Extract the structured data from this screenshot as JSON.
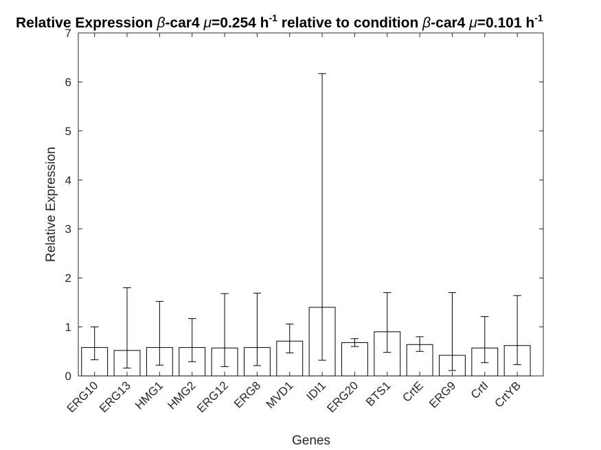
{
  "chart_data": {
    "type": "bar",
    "title": {
      "prefix": "Relative Expression ",
      "beta1": "β",
      "strain1": "-car4 ",
      "mu1": "μ",
      "rate1": "=0.254 h",
      "sup1": "-1",
      "middle": " relative to condition ",
      "beta2": "β",
      "strain2": "-car4 ",
      "mu2": "μ",
      "rate2": "=0.101 h",
      "sup2": "-1"
    },
    "xlabel": "Genes",
    "ylabel": "Relative Expression",
    "ylim": [
      0,
      7
    ],
    "yticks": [
      0,
      1,
      2,
      3,
      4,
      5,
      6,
      7
    ],
    "grid": false,
    "categories": [
      "ERG10",
      "ERG13",
      "HMG1",
      "HMG2",
      "ERG12",
      "ERG8",
      "MVD1",
      "IDI1",
      "ERG20",
      "BTS1",
      "CrtE",
      "ERG9",
      "CrtI",
      "CrtYB"
    ],
    "values": [
      0.58,
      0.52,
      0.58,
      0.58,
      0.57,
      0.58,
      0.71,
      1.4,
      0.68,
      0.9,
      0.64,
      0.42,
      0.57,
      0.62
    ],
    "error_lower": [
      0.33,
      0.16,
      0.22,
      0.29,
      0.19,
      0.21,
      0.47,
      0.32,
      0.6,
      0.48,
      0.5,
      0.11,
      0.27,
      0.23
    ],
    "error_upper": [
      1.0,
      1.8,
      1.52,
      1.17,
      1.68,
      1.69,
      1.06,
      6.17,
      0.76,
      1.7,
      0.8,
      1.7,
      1.21,
      1.64
    ],
    "colors": {
      "bar_fill": "#ffffff",
      "bar_edge": "#000000",
      "axis": "#262626"
    }
  }
}
